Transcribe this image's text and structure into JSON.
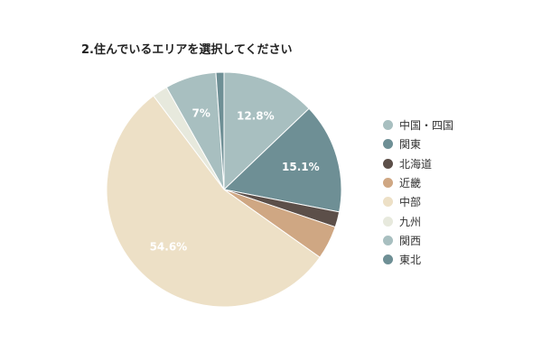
{
  "chart_data": {
    "type": "pie",
    "title": "2.住んでいるエリアを選択してください",
    "start_angle_deg": 0,
    "direction": "clockwise",
    "legend_position": "right",
    "slices": [
      {
        "name": "中国・四国",
        "value": 12.8,
        "label": "12.8%",
        "color": "#a8bfc0",
        "label_color": "#ffffff"
      },
      {
        "name": "関東",
        "value": 15.1,
        "label": "15.1%",
        "color": "#6e8f95",
        "label_color": "#ffffff"
      },
      {
        "name": "北海道",
        "value": 2.1,
        "label": "",
        "color": "#5c4f49",
        "label_color": "#ffffff"
      },
      {
        "name": "近畿",
        "value": 4.6,
        "label": "",
        "color": "#cfa783",
        "label_color": "#ffffff"
      },
      {
        "name": "中部",
        "value": 54.6,
        "label": "54.6%",
        "color": "#ede0c6",
        "label_color": "#ffffff"
      },
      {
        "name": "九州",
        "value": 2.1,
        "label": "",
        "color": "#e7e9dd",
        "label_color": "#ffffff"
      },
      {
        "name": "関西",
        "value": 7.0,
        "label": "7%",
        "color": "#a8bfc0",
        "label_color": "#ffffff"
      },
      {
        "name": "東北",
        "value": 1.1,
        "label": "",
        "color": "#6e8f95",
        "label_color": "#ffffff"
      }
    ]
  }
}
